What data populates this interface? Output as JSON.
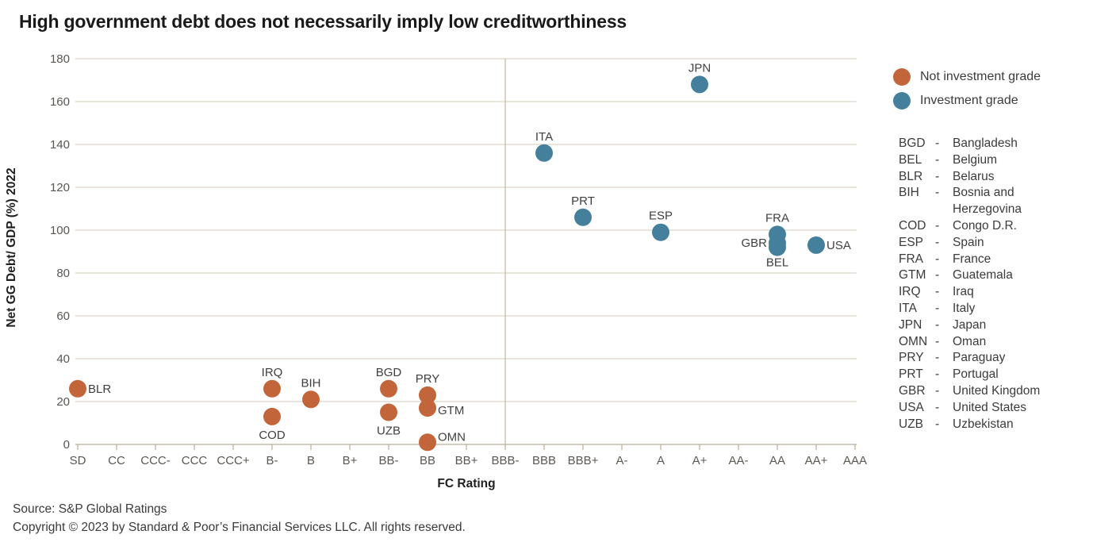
{
  "title": "High government debt does not necessarily imply low creditworthiness",
  "legend": {
    "items": [
      {
        "label": "Not investment grade",
        "color": "#c2653b"
      },
      {
        "label": "Investment grade",
        "color": "#44809b"
      }
    ]
  },
  "abbreviations": [
    {
      "code": "BGD",
      "name": "Bangladesh"
    },
    {
      "code": "BEL",
      "name": "Belgium"
    },
    {
      "code": "BLR",
      "name": "Belarus"
    },
    {
      "code": "BIH",
      "name": "Bosnia and Herzegovina"
    },
    {
      "code": "COD",
      "name": "Congo D.R."
    },
    {
      "code": "ESP",
      "name": "Spain"
    },
    {
      "code": "FRA",
      "name": "France"
    },
    {
      "code": "GTM",
      "name": "Guatemala"
    },
    {
      "code": "IRQ",
      "name": "Iraq"
    },
    {
      "code": "ITA",
      "name": "Italy"
    },
    {
      "code": "JPN",
      "name": "Japan"
    },
    {
      "code": "OMN",
      "name": "Oman"
    },
    {
      "code": "PRY",
      "name": "Paraguay"
    },
    {
      "code": "PRT",
      "name": "Portugal"
    },
    {
      "code": "GBR",
      "name": "United Kingdom"
    },
    {
      "code": "USA",
      "name": "United States"
    },
    {
      "code": "UZB",
      "name": "Uzbekistan"
    }
  ],
  "chart_data": {
    "type": "scatter",
    "title": "High government debt does not necessarily imply low creditworthiness",
    "xlabel": "FC Rating",
    "ylabel": "Net GG Debt/ GDP (%) 2022",
    "x_categories": [
      "SD",
      "CC",
      "CCC-",
      "CCC",
      "CCC+",
      "B-",
      "B",
      "B+",
      "BB-",
      "BB",
      "BB+",
      "BBB-",
      "BBB",
      "BBB+",
      "A-",
      "A",
      "A+",
      "AA-",
      "AA",
      "AA+",
      "AAA"
    ],
    "yticks": [
      0,
      20,
      40,
      60,
      80,
      100,
      120,
      140,
      160,
      180
    ],
    "ylim": [
      0,
      180
    ],
    "grid": true,
    "divider_at_category": "BBB-",
    "legend_position": "top-right",
    "colors": {
      "gridline": "#dcd4c8",
      "axis": "#b9ae9e",
      "divider": "#c2b6a4",
      "tick_label": "#5b5752",
      "point_label": "#3f3f3f"
    },
    "series": [
      {
        "name": "Not investment grade",
        "color": "#c2653b",
        "points": [
          {
            "code": "BLR",
            "rating": "SD",
            "value": 26,
            "label_pos": "right"
          },
          {
            "code": "IRQ",
            "rating": "B-",
            "value": 26,
            "label_pos": "above"
          },
          {
            "code": "COD",
            "rating": "B-",
            "value": 13,
            "label_pos": "below"
          },
          {
            "code": "BIH",
            "rating": "B",
            "value": 21,
            "label_pos": "above"
          },
          {
            "code": "BGD",
            "rating": "BB-",
            "value": 26,
            "label_pos": "above"
          },
          {
            "code": "UZB",
            "rating": "BB-",
            "value": 15,
            "label_pos": "below"
          },
          {
            "code": "PRY",
            "rating": "BB",
            "value": 23,
            "label_pos": "above"
          },
          {
            "code": "GTM",
            "rating": "BB",
            "value": 17,
            "label_pos": "right",
            "label_dy": 3
          },
          {
            "code": "OMN",
            "rating": "BB",
            "value": 1,
            "label_pos": "right",
            "label_dy": -7
          }
        ]
      },
      {
        "name": "Investment grade",
        "color": "#44809b",
        "points": [
          {
            "code": "ITA",
            "rating": "BBB",
            "value": 136,
            "label_pos": "above"
          },
          {
            "code": "PRT",
            "rating": "BBB+",
            "value": 106,
            "label_pos": "above"
          },
          {
            "code": "ESP",
            "rating": "A",
            "value": 99,
            "label_pos": "above"
          },
          {
            "code": "JPN",
            "rating": "A+",
            "value": 168,
            "label_pos": "above"
          },
          {
            "code": "FRA",
            "rating": "AA",
            "value": 98,
            "label_pos": "above"
          },
          {
            "code": "GBR",
            "rating": "AA",
            "value": 94,
            "label_pos": "left"
          },
          {
            "code": "BEL",
            "rating": "AA",
            "value": 92,
            "label_pos": "below",
            "label_dy": -4
          },
          {
            "code": "USA",
            "rating": "AA+",
            "value": 93,
            "label_pos": "right"
          }
        ]
      }
    ]
  },
  "footer": {
    "source": "Source: S&P Global Ratings",
    "copyright": "Copyright © 2023 by Standard & Poor’s Financial Services LLC. All rights reserved."
  }
}
